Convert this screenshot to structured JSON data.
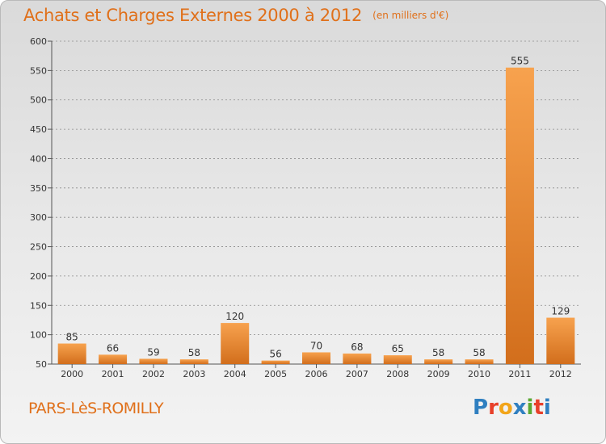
{
  "title": "Achats et Charges Externes 2000 à 2012",
  "unit": "(en milliers d'€)",
  "commune": "PARS-LèS-ROMILLY",
  "logo": "Proxiti",
  "colors": {
    "title": "#e0701a",
    "bar_light": "#f7a24e",
    "bar_dark": "#d26e1c",
    "axis": "#555555",
    "grid": "#8a8a8a"
  },
  "chart_data": {
    "type": "bar",
    "categories": [
      "2000",
      "2001",
      "2002",
      "2003",
      "2004",
      "2005",
      "2006",
      "2007",
      "2008",
      "2009",
      "2010",
      "2011",
      "2012"
    ],
    "values": [
      85,
      66,
      59,
      58,
      120,
      56,
      70,
      68,
      65,
      58,
      58,
      555,
      129
    ],
    "ylim": [
      50,
      600
    ],
    "yticks": [
      50,
      100,
      150,
      200,
      250,
      300,
      350,
      400,
      450,
      500,
      550,
      600
    ],
    "grid": true,
    "legend": "none"
  }
}
